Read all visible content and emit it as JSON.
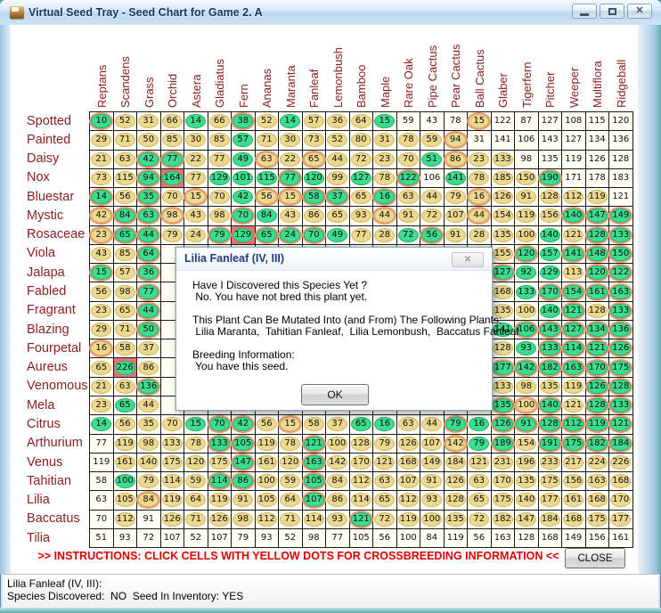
{
  "window": {
    "title": "Virtual Seed Tray - Seed Chart for Game 2. A"
  },
  "table": {
    "columns": [
      "Reptans",
      "Scandens",
      "Grass",
      "Orchid",
      "Astera",
      "Gladiatus",
      "Fern",
      "Ananas",
      "Maranta",
      "Fanleaf",
      "Lemonbush",
      "Bamboo",
      "Maple",
      "Rare Oak",
      "Pipe Cactus",
      "Pear Cactus",
      "Ball Cactus",
      "Glaber",
      "Tigerfern",
      "Pitcher",
      "Weeper",
      "Multiflora",
      "Ridgeball"
    ],
    "style_legend": {
      "t": "tan",
      "g": "green",
      "go": "green-ringed",
      "to": "tan-ringed",
      "p": "plain",
      "rg": "red-cell-green",
      "h": "hidden-under-dialog"
    },
    "rows": [
      {
        "label": "Spotted",
        "values": [
          10,
          52,
          31,
          66,
          14,
          66,
          38,
          52,
          14,
          57,
          36,
          64,
          15,
          59,
          43,
          78,
          15,
          122,
          87,
          127,
          108,
          115,
          120
        ],
        "styles": [
          "go",
          "t",
          "t",
          "t",
          "g",
          "t",
          "go",
          "t",
          "g",
          "t",
          "t",
          "t",
          "g",
          "p",
          "p",
          "p",
          "to",
          "p",
          "p",
          "p",
          "p",
          "p",
          "p"
        ]
      },
      {
        "label": "Painted",
        "values": [
          29,
          71,
          50,
          85,
          30,
          85,
          57,
          71,
          30,
          73,
          52,
          80,
          31,
          78,
          59,
          94,
          31,
          141,
          106,
          143,
          127,
          134,
          136
        ],
        "styles": [
          "t",
          "t",
          "t",
          "t",
          "t",
          "t",
          "g",
          "t",
          "t",
          "t",
          "t",
          "t",
          "t",
          "t",
          "t",
          "to",
          "p",
          "p",
          "p",
          "p",
          "p",
          "p",
          "p"
        ]
      },
      {
        "label": "Daisy",
        "values": [
          21,
          63,
          42,
          77,
          22,
          77,
          49,
          63,
          22,
          65,
          44,
          72,
          23,
          70,
          51,
          86,
          23,
          133,
          98,
          135,
          119,
          126,
          128
        ],
        "styles": [
          "t",
          "t",
          "go",
          "go",
          "t",
          "t",
          "g",
          "to",
          "t",
          "to",
          "t",
          "t",
          "t",
          "t",
          "g",
          "to",
          "t",
          "t",
          "p",
          "p",
          "p",
          "p",
          "p"
        ]
      },
      {
        "label": "Nox",
        "values": [
          73,
          115,
          94,
          164,
          77,
          129,
          101,
          115,
          77,
          120,
          99,
          127,
          78,
          122,
          106,
          141,
          78,
          185,
          150,
          190,
          171,
          178,
          183
        ],
        "styles": [
          "t",
          "t",
          "go",
          "rg",
          "t",
          "g",
          "g",
          "g",
          "go",
          "g",
          "t",
          "g",
          "t",
          "go",
          "p",
          "g",
          "t",
          "t",
          "t",
          "go",
          "p",
          "p",
          "p"
        ]
      },
      {
        "label": "Bluestar",
        "values": [
          14,
          56,
          35,
          70,
          15,
          70,
          42,
          56,
          15,
          58,
          37,
          65,
          16,
          63,
          44,
          79,
          16,
          126,
          91,
          128,
          112,
          119,
          121
        ],
        "styles": [
          "go",
          "t",
          "go",
          "t",
          "to",
          "t",
          "g",
          "to",
          "to",
          "go",
          "go",
          "t",
          "go",
          "t",
          "t",
          "t",
          "to",
          "t",
          "t",
          "t",
          "t",
          "t",
          "p"
        ]
      },
      {
        "label": "Mystic",
        "values": [
          42,
          84,
          63,
          98,
          43,
          98,
          70,
          84,
          43,
          86,
          65,
          93,
          44,
          91,
          72,
          107,
          44,
          154,
          119,
          156,
          140,
          147,
          149
        ],
        "styles": [
          "to",
          "go",
          "go",
          "to",
          "t",
          "t",
          "go",
          "g",
          "t",
          "t",
          "t",
          "t",
          "to",
          "t",
          "t",
          "t",
          "to",
          "t",
          "t",
          "t",
          "go",
          "go",
          "go"
        ]
      },
      {
        "label": "Rosaceae",
        "values": [
          23,
          65,
          44,
          79,
          24,
          79,
          129,
          65,
          24,
          70,
          49,
          77,
          28,
          72,
          56,
          91,
          28,
          135,
          100,
          140,
          121,
          128,
          133
        ],
        "styles": [
          "to",
          "go",
          "go",
          "t",
          "t",
          "go",
          "rg",
          "go",
          "go",
          "go",
          "g",
          "t",
          "t",
          "g",
          "go",
          "t",
          "t",
          "t",
          "t",
          "g",
          "t",
          "go",
          "go"
        ]
      },
      {
        "label": "Viola",
        "values": [
          43,
          85,
          64,
          null,
          null,
          null,
          null,
          null,
          null,
          null,
          null,
          null,
          null,
          null,
          null,
          null,
          null,
          155,
          120,
          157,
          141,
          148,
          150
        ],
        "styles": [
          "t",
          "t",
          "go",
          "h",
          "h",
          "h",
          "h",
          "h",
          "h",
          "h",
          "h",
          "h",
          "h",
          "h",
          "h",
          "h",
          "h",
          "t",
          "go",
          "g",
          "go",
          "go",
          "go"
        ]
      },
      {
        "label": "Jalapa",
        "values": [
          15,
          57,
          36,
          null,
          null,
          null,
          null,
          null,
          null,
          null,
          null,
          null,
          null,
          null,
          null,
          null,
          null,
          127,
          92,
          129,
          113,
          120,
          122
        ],
        "styles": [
          "go",
          "t",
          "go",
          "h",
          "h",
          "h",
          "h",
          "h",
          "h",
          "h",
          "h",
          "h",
          "h",
          "h",
          "h",
          "h",
          "h",
          "go",
          "g",
          "g",
          "t",
          "go",
          "go"
        ]
      },
      {
        "label": "Fabled",
        "values": [
          56,
          98,
          77,
          null,
          null,
          null,
          null,
          null,
          null,
          null,
          null,
          null,
          null,
          null,
          null,
          null,
          null,
          168,
          133,
          170,
          154,
          161,
          163
        ],
        "styles": [
          "t",
          "t",
          "go",
          "h",
          "h",
          "h",
          "h",
          "h",
          "h",
          "h",
          "h",
          "h",
          "h",
          "h",
          "h",
          "h",
          "h",
          "t",
          "g",
          "go",
          "go",
          "go",
          "go"
        ]
      },
      {
        "label": "Fragrant",
        "values": [
          23,
          65,
          44,
          null,
          null,
          null,
          null,
          null,
          null,
          null,
          null,
          null,
          null,
          null,
          null,
          null,
          null,
          135,
          100,
          140,
          121,
          128,
          133
        ],
        "styles": [
          "t",
          "t",
          "go",
          "h",
          "h",
          "h",
          "h",
          "h",
          "h",
          "h",
          "h",
          "h",
          "h",
          "h",
          "h",
          "h",
          "h",
          "t",
          "t",
          "g",
          "go",
          "t",
          "go"
        ]
      },
      {
        "label": "Blazing",
        "values": [
          29,
          71,
          50,
          null,
          null,
          null,
          null,
          null,
          null,
          null,
          null,
          null,
          null,
          null,
          null,
          null,
          null,
          141,
          106,
          143,
          127,
          134,
          136
        ],
        "styles": [
          "t",
          "t",
          "go",
          "h",
          "h",
          "h",
          "h",
          "h",
          "h",
          "h",
          "h",
          "h",
          "h",
          "h",
          "h",
          "h",
          "h",
          "g",
          "go",
          "go",
          "go",
          "go",
          "go"
        ]
      },
      {
        "label": "Fourpetal",
        "values": [
          16,
          58,
          37,
          null,
          null,
          null,
          null,
          null,
          null,
          null,
          null,
          null,
          null,
          null,
          null,
          null,
          null,
          128,
          93,
          133,
          114,
          121,
          126
        ],
        "styles": [
          "to",
          "t",
          "t",
          "h",
          "h",
          "h",
          "h",
          "h",
          "h",
          "h",
          "h",
          "h",
          "h",
          "h",
          "h",
          "h",
          "h",
          "t",
          "g",
          "go",
          "go",
          "go",
          "go"
        ]
      },
      {
        "label": "Aureus",
        "values": [
          65,
          226,
          86,
          null,
          null,
          null,
          null,
          null,
          null,
          null,
          null,
          null,
          null,
          null,
          null,
          null,
          null,
          177,
          142,
          182,
          163,
          170,
          175
        ],
        "styles": [
          "t",
          "rg",
          "t",
          "h",
          "h",
          "h",
          "h",
          "h",
          "h",
          "h",
          "h",
          "h",
          "h",
          "h",
          "h",
          "h",
          "h",
          "go",
          "go",
          "go",
          "go",
          "go",
          "go"
        ]
      },
      {
        "label": "Venomous",
        "values": [
          21,
          63,
          136,
          null,
          null,
          null,
          null,
          null,
          null,
          null,
          null,
          null,
          null,
          null,
          null,
          null,
          null,
          133,
          98,
          135,
          119,
          126,
          128
        ],
        "styles": [
          "t",
          "t",
          "go",
          "h",
          "h",
          "h",
          "h",
          "h",
          "h",
          "h",
          "h",
          "h",
          "h",
          "h",
          "h",
          "h",
          "h",
          "t",
          "t",
          "t",
          "t",
          "go",
          "go"
        ]
      },
      {
        "label": "Mela",
        "values": [
          23,
          65,
          44,
          null,
          null,
          null,
          null,
          null,
          null,
          null,
          null,
          null,
          null,
          null,
          null,
          null,
          null,
          135,
          100,
          140,
          121,
          128,
          133
        ],
        "styles": [
          "t",
          "g",
          "t",
          "h",
          "h",
          "h",
          "h",
          "h",
          "h",
          "h",
          "h",
          "h",
          "h",
          "h",
          "h",
          "h",
          "h",
          "go",
          "to",
          "go",
          "t",
          "go",
          "go"
        ]
      },
      {
        "label": "Citrus",
        "values": [
          14,
          56,
          35,
          70,
          15,
          70,
          42,
          56,
          15,
          58,
          37,
          65,
          16,
          63,
          44,
          79,
          16,
          126,
          91,
          128,
          112,
          119,
          121
        ],
        "styles": [
          "g",
          "t",
          "t",
          "t",
          "g",
          "go",
          "go",
          "t",
          "to",
          "t",
          "t",
          "g",
          "g",
          "t",
          "t",
          "go",
          "g",
          "go",
          "go",
          "go",
          "go",
          "go",
          "go"
        ]
      },
      {
        "label": "Arthurium",
        "values": [
          77,
          119,
          98,
          133,
          78,
          133,
          105,
          119,
          78,
          121,
          100,
          128,
          79,
          126,
          107,
          142,
          79,
          189,
          154,
          191,
          175,
          182,
          184
        ],
        "styles": [
          "p",
          "t",
          "t",
          "t",
          "t",
          "go",
          "go",
          "t",
          "t",
          "go",
          "t",
          "t",
          "t",
          "t",
          "t",
          "to",
          "g",
          "go",
          "t",
          "go",
          "go",
          "go",
          "go"
        ]
      },
      {
        "label": "Venus",
        "values": [
          119,
          161,
          140,
          175,
          120,
          175,
          147,
          161,
          120,
          163,
          142,
          170,
          121,
          168,
          149,
          184,
          121,
          231,
          196,
          233,
          217,
          224,
          226
        ],
        "styles": [
          "p",
          "t",
          "t",
          "t",
          "t",
          "t",
          "go",
          "t",
          "t",
          "go",
          "t",
          "t",
          "t",
          "t",
          "t",
          "t",
          "t",
          "t",
          "t",
          "t",
          "t",
          "t",
          "t"
        ]
      },
      {
        "label": "Tahitian",
        "values": [
          58,
          100,
          79,
          114,
          59,
          114,
          86,
          100,
          59,
          105,
          84,
          112,
          63,
          107,
          91,
          126,
          63,
          170,
          135,
          175,
          156,
          163,
          168
        ],
        "styles": [
          "p",
          "g",
          "t",
          "t",
          "t",
          "go",
          "go",
          "t",
          "t",
          "go",
          "t",
          "t",
          "t",
          "t",
          "t",
          "t",
          "t",
          "t",
          "t",
          "t",
          "t",
          "t",
          "t"
        ]
      },
      {
        "label": "Lilia",
        "values": [
          63,
          105,
          84,
          119,
          64,
          119,
          91,
          105,
          64,
          107,
          86,
          114,
          65,
          112,
          93,
          128,
          65,
          175,
          140,
          177,
          161,
          168,
          170
        ],
        "styles": [
          "p",
          "t",
          "to",
          "t",
          "t",
          "t",
          "t",
          "t",
          "t",
          "go",
          "t",
          "t",
          "t",
          "t",
          "t",
          "t",
          "t",
          "t",
          "t",
          "t",
          "t",
          "t",
          "t"
        ]
      },
      {
        "label": "Baccatus",
        "values": [
          70,
          112,
          91,
          126,
          71,
          126,
          98,
          112,
          71,
          114,
          93,
          121,
          72,
          119,
          100,
          135,
          72,
          182,
          147,
          184,
          168,
          175,
          177
        ],
        "styles": [
          "p",
          "t",
          "p",
          "t",
          "t",
          "t",
          "t",
          "t",
          "t",
          "t",
          "t",
          "go",
          "t",
          "t",
          "t",
          "t",
          "t",
          "t",
          "t",
          "t",
          "t",
          "t",
          "t"
        ]
      },
      {
        "label": "Tilia",
        "values": [
          51,
          93,
          72,
          107,
          52,
          107,
          79,
          93,
          52,
          98,
          77,
          105,
          56,
          100,
          84,
          119,
          56,
          163,
          128,
          168,
          149,
          156,
          161
        ],
        "styles": [
          "p",
          "p",
          "p",
          "p",
          "p",
          "p",
          "p",
          "p",
          "p",
          "p",
          "p",
          "p",
          "p",
          "p",
          "p",
          "p",
          "p",
          "p",
          "p",
          "p",
          "p",
          "p",
          "p"
        ]
      }
    ]
  },
  "dialog": {
    "title": "Lilia Fanleaf (IV, III)",
    "lines": [
      "Have I Discovered this Species Yet ?",
      " No. You have not bred this plant yet.",
      "",
      "This Plant Can Be Mutated Into (and From) The Following Plants:",
      " Lilia Maranta,  Tahitian Fanleaf,  Lilia Lemonbush,  Baccatus Fanleaf",
      "",
      "Breeding Information:",
      " You have this seed.",
      ""
    ],
    "ok_label": "OK"
  },
  "footer": {
    "instructions": ">> INSTRUCTIONS: CLICK CELLS WITH YELLOW DOTS FOR CROSSBREEDING INFORMATION <<",
    "close_label": "CLOSE"
  },
  "statusbar": {
    "line1": "Lilia Fanleaf (IV, III):",
    "line2": "Species Discovered:  NO  Seed In Inventory: YES"
  },
  "colors": {
    "tan_cell": "#ecd88f",
    "green_cell": "#3edc8e",
    "ring": "#e99878",
    "red_cell": "#ef7070",
    "grid_bg": "#fffff3",
    "label_text": "#8b1e1e",
    "instructions_text": "#e00000",
    "title_text": "#1a3863"
  }
}
